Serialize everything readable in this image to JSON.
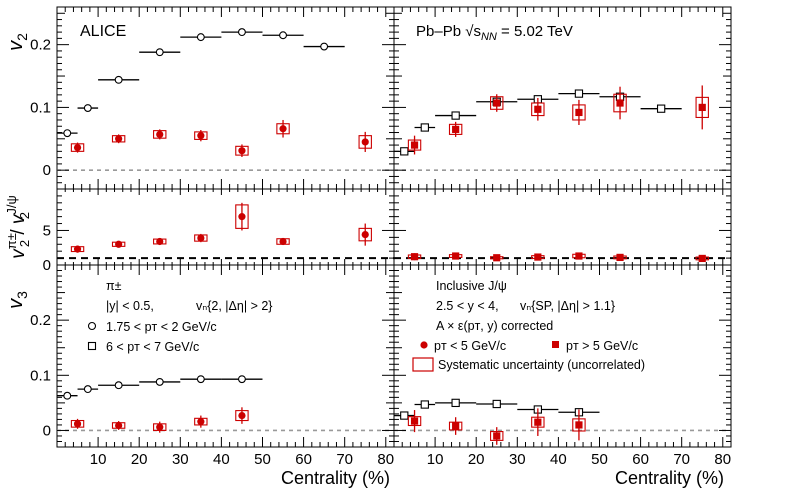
{
  "chart_data": {
    "type": "scatter",
    "experiment": "ALICE",
    "system": "Pb–Pb",
    "energy_symbol": "√s",
    "energy_subscript": "NN",
    "energy_value": " = 5.02 TeV",
    "xlabel": "Centrality (%)",
    "xlim": [
      0,
      82
    ],
    "x_ticks": [
      10,
      20,
      30,
      40,
      50,
      60,
      70,
      80
    ],
    "row_ylabels": {
      "v2": {
        "base": "v",
        "sub": "2"
      },
      "ratio": {
        "num_base": "v",
        "num_sub": "2",
        "num_sup": "π±",
        "den_base": "v",
        "den_sub": "2",
        "den_sup": "J/ψ"
      },
      "v3": {
        "base": "v",
        "sub": "3"
      }
    },
    "rows": {
      "v2": {
        "ylim": [
          -0.03,
          0.26
        ],
        "ticks": [
          0,
          0.1,
          0.2
        ],
        "tick_labels": [
          "0",
          "0.1",
          "0.2"
        ]
      },
      "ratio": {
        "ylim": [
          0,
          11
        ],
        "ticks": [
          0,
          5
        ],
        "tick_labels": [
          "0",
          "5"
        ]
      },
      "v3": {
        "ylim": [
          -0.03,
          0.3
        ],
        "ticks": [
          0,
          0.1,
          0.2
        ],
        "tick_labels": [
          "0",
          "0.1",
          "0.2"
        ]
      }
    },
    "legend_left": {
      "title": "π±",
      "cut": "|y| < 0.5,",
      "method": "vₙ{2, |Δη| > 2}",
      "entries": [
        "1.75 < pᴛ < 2 GeV/c",
        "6 < pᴛ < 7 GeV/c"
      ]
    },
    "legend_right": {
      "title": "Inclusive J/ψ",
      "cut": "2.5 < y < 4,",
      "method": "vₙ{SP, |Δη| > 1.1}",
      "correction": "A × ε(pᴛ, y) corrected",
      "entries": [
        "pᴛ < 5 GeV/c",
        "pᴛ > 5 GeV/c"
      ],
      "syst_label": "Systematic uncertainty (uncorrelated)"
    },
    "series": {
      "pi_low_v2": {
        "name": "π± 1.75<pT<2 GeV/c v2",
        "x": [
          2.5,
          7.5,
          15,
          25,
          35,
          45,
          55,
          65
        ],
        "xerr": [
          2.5,
          2.5,
          5,
          5,
          5,
          5,
          5,
          5
        ],
        "y": [
          0.059,
          0.099,
          0.144,
          0.188,
          0.212,
          0.22,
          0.215,
          0.197
        ]
      },
      "pi_high_v2": {
        "name": "π± 6<pT<7 GeV/c v2",
        "x": [
          2.5,
          7.5,
          15,
          25,
          35,
          45,
          55,
          65
        ],
        "xerr": [
          2.5,
          2.5,
          5,
          5,
          5,
          5,
          5,
          5
        ],
        "y": [
          0.03,
          0.068,
          0.087,
          0.109,
          0.113,
          0.122,
          0.117,
          0.098
        ]
      },
      "jpsi_v2_left": {
        "name": "J/ψ pT<5 GeV/c v2",
        "x": [
          5,
          15,
          25,
          35,
          45,
          55,
          75
        ],
        "y": [
          0.036,
          0.05,
          0.057,
          0.055,
          0.031,
          0.066,
          0.045
        ],
        "yerr": [
          0.008,
          0.007,
          0.008,
          0.009,
          0.01,
          0.014,
          0.016
        ],
        "ysys": [
          0.006,
          0.005,
          0.006,
          0.006,
          0.007,
          0.008,
          0.01
        ]
      },
      "jpsi_v2_right": {
        "name": "J/ψ pT>5 GeV/c v2",
        "x": [
          5,
          15,
          25,
          35,
          45,
          55,
          75
        ],
        "y": [
          0.04,
          0.065,
          0.107,
          0.097,
          0.092,
          0.107,
          0.1
        ],
        "yerr": [
          0.015,
          0.012,
          0.014,
          0.018,
          0.02,
          0.026,
          0.035
        ],
        "ysys": [
          0.008,
          0.008,
          0.01,
          0.01,
          0.012,
          0.014,
          0.016
        ]
      },
      "ratio_left": {
        "name": "v2(π)/v2(J/ψ) low pT",
        "x": [
          5,
          15,
          25,
          35,
          45,
          55,
          75
        ],
        "y": [
          2.3,
          3.0,
          3.4,
          3.9,
          7.0,
          3.4,
          4.4
        ],
        "yerr": [
          0.5,
          0.4,
          0.4,
          0.6,
          2.0,
          0.5,
          1.6
        ],
        "ysys": [
          0.35,
          0.3,
          0.35,
          0.45,
          1.7,
          0.4,
          0.9
        ]
      },
      "ratio_right": {
        "name": "v2(π)/v2(J/ψ) high pT",
        "x": [
          5,
          15,
          25,
          35,
          45,
          55,
          75
        ],
        "y": [
          1.2,
          1.3,
          1.05,
          1.15,
          1.3,
          1.1,
          0.95
        ],
        "yerr": [
          0.5,
          0.3,
          0.2,
          0.25,
          0.35,
          0.3,
          0.35
        ],
        "ysys": [
          0.25,
          0.2,
          0.15,
          0.2,
          0.25,
          0.2,
          0.2
        ]
      },
      "pi_low_v3": {
        "name": "π± 1.75<pT<2 GeV/c v3",
        "x": [
          2.5,
          7.5,
          15,
          25,
          35,
          45
        ],
        "xerr": [
          2.5,
          2.5,
          5,
          5,
          5,
          5
        ],
        "y": [
          0.063,
          0.075,
          0.082,
          0.088,
          0.093,
          0.093
        ]
      },
      "pi_high_v3": {
        "name": "π± 6<pT<7 GeV/c v3",
        "x": [
          2.5,
          7.5,
          15,
          25,
          35,
          45
        ],
        "xerr": [
          2.5,
          2.5,
          5,
          5,
          5,
          5
        ],
        "y": [
          0.027,
          0.047,
          0.05,
          0.048,
          0.038,
          0.033
        ]
      },
      "jpsi_v3_left": {
        "name": "J/ψ pT<5 GeV/c v3",
        "x": [
          5,
          15,
          25,
          35,
          45
        ],
        "y": [
          0.012,
          0.009,
          0.006,
          0.016,
          0.027
        ],
        "yerr": [
          0.009,
          0.008,
          0.01,
          0.011,
          0.015
        ],
        "ysys": [
          0.006,
          0.005,
          0.006,
          0.006,
          0.009
        ]
      },
      "jpsi_v3_right": {
        "name": "J/ψ pT>5 GeV/c v3",
        "x": [
          5,
          15,
          25,
          35,
          45
        ],
        "y": [
          0.017,
          0.008,
          -0.01,
          0.015,
          0.01
        ],
        "yerr": [
          0.02,
          0.016,
          0.016,
          0.025,
          0.028
        ],
        "ysys": [
          0.008,
          0.007,
          0.008,
          0.009,
          0.011
        ]
      }
    },
    "colors": {
      "jpsi": "#cc0000",
      "pion": "#000000",
      "zero_line": "#999999",
      "unity_line": "#000000"
    }
  }
}
